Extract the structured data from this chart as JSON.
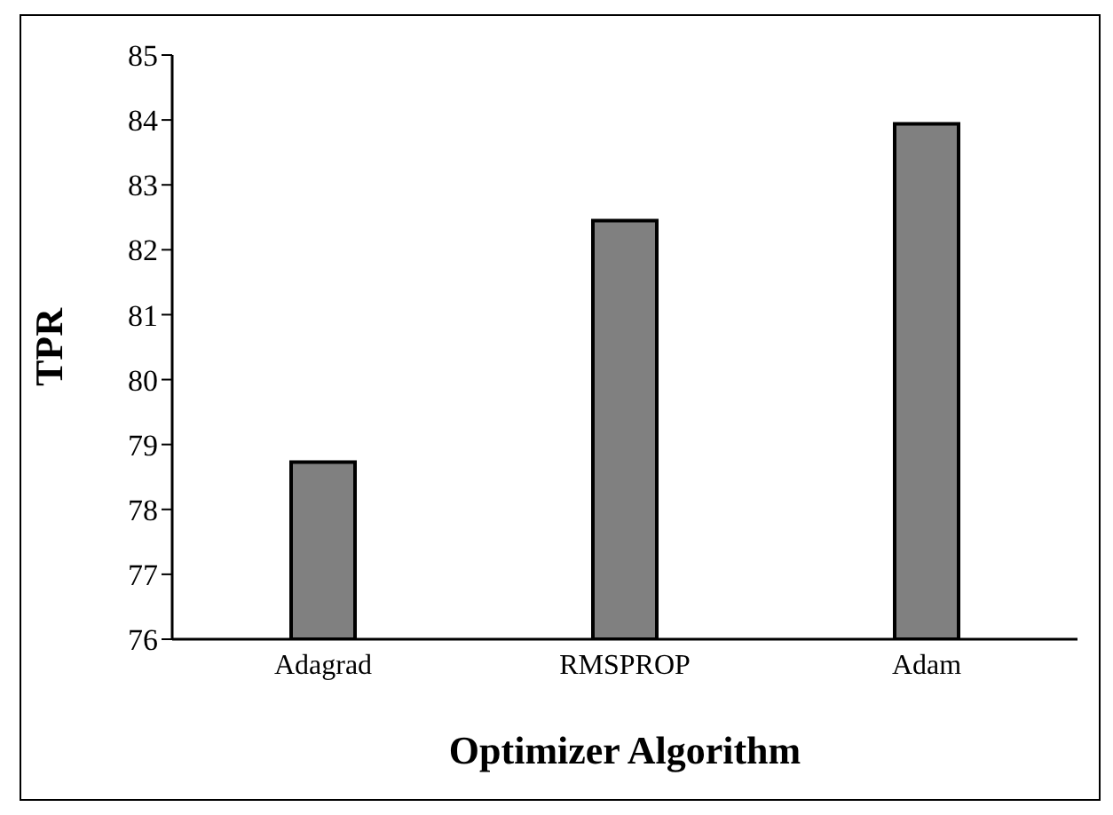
{
  "chart_data": {
    "type": "bar",
    "xlabel": "Optimizer Algorithm",
    "ylabel": "TPR",
    "categories": [
      "Adagrad",
      "RMSPROP",
      "Adam"
    ],
    "values": [
      78.73,
      82.45,
      83.94
    ],
    "color": "#808080",
    "ylim": [
      76,
      85
    ],
    "yticks": [
      76,
      77,
      78,
      79,
      80,
      81,
      82,
      83,
      84,
      85
    ],
    "grid": false
  }
}
